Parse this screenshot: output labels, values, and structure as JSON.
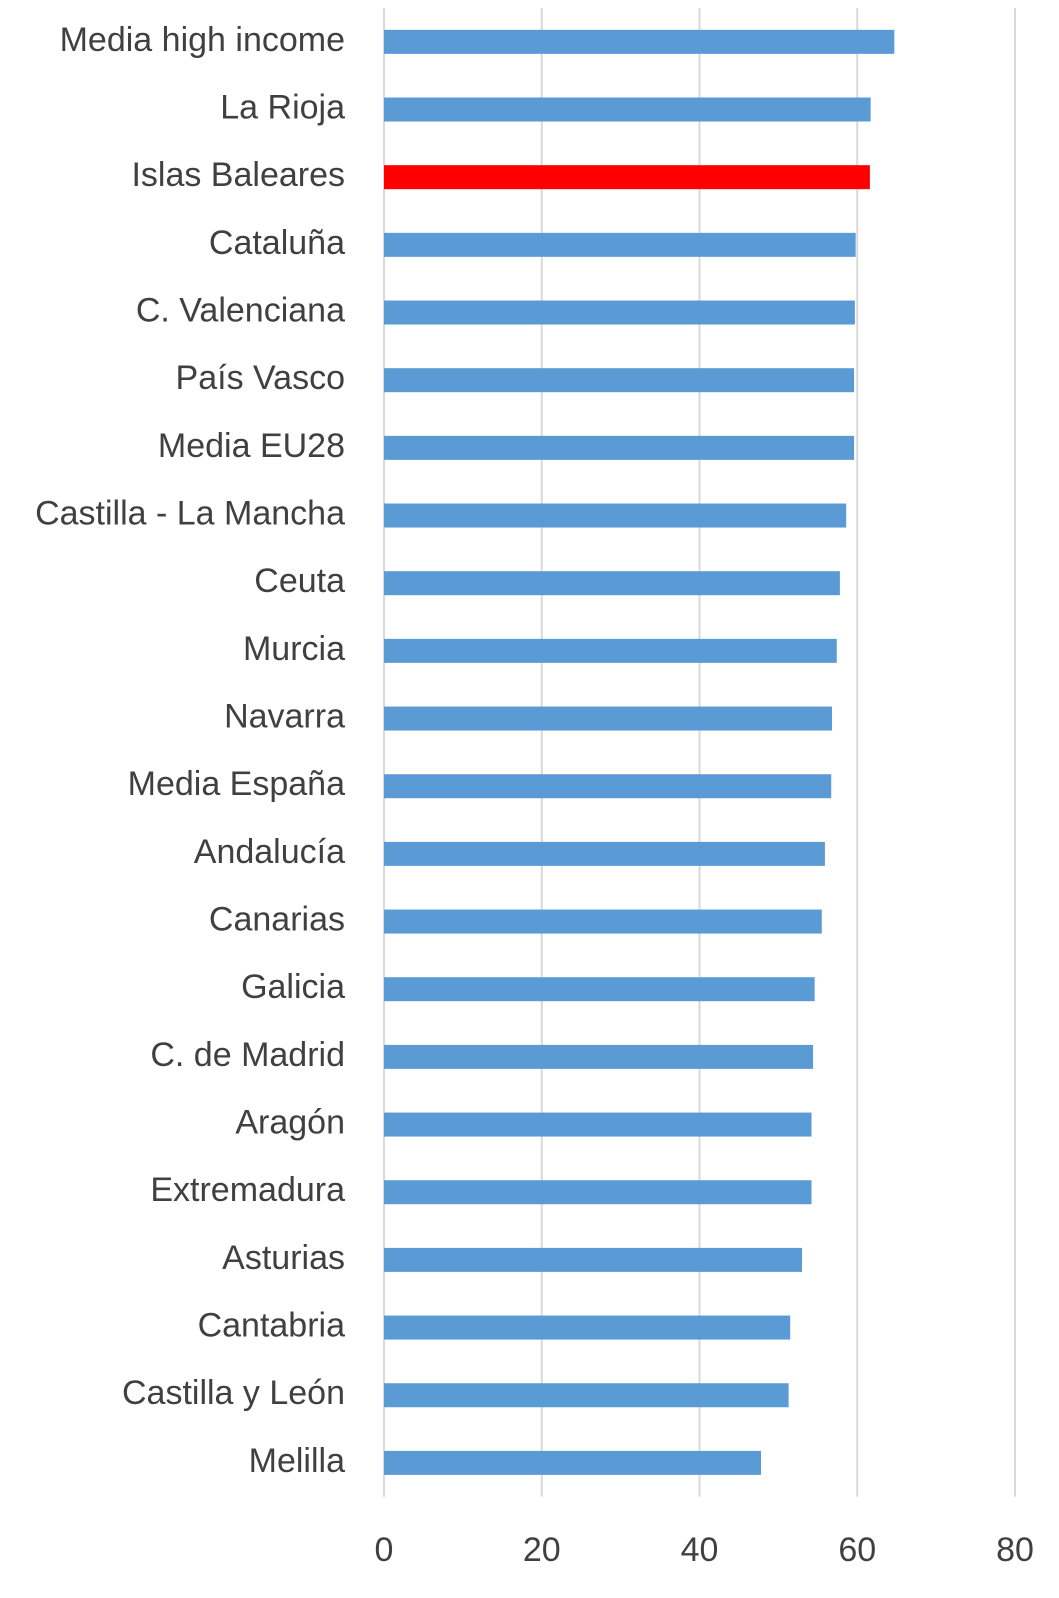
{
  "chart_data": {
    "type": "hbar",
    "categories": [
      "Media high income",
      "La Rioja",
      "Islas Baleares",
      "Cataluña",
      "C. Valenciana",
      "País Vasco",
      "Media EU28",
      "Castilla - La Mancha",
      "Ceuta",
      "Murcia",
      "Navarra",
      "Media España",
      "Andalucía",
      "Canarias",
      "Galicia",
      "C. de Madrid",
      "Aragón",
      "Extremadura",
      "Asturias",
      "Cantabria",
      "Castilla y León",
      "Melilla"
    ],
    "values": [
      64.7,
      61.7,
      61.6,
      59.8,
      59.7,
      59.6,
      59.6,
      58.6,
      57.8,
      57.4,
      56.8,
      56.7,
      55.9,
      55.5,
      54.6,
      54.4,
      54.2,
      54.2,
      53.0,
      51.5,
      51.3,
      47.8
    ],
    "colors": [
      "#5b9bd5",
      "#5b9bd5",
      "#ff0000",
      "#5b9bd5",
      "#5b9bd5",
      "#5b9bd5",
      "#5b9bd5",
      "#5b9bd5",
      "#5b9bd5",
      "#5b9bd5",
      "#5b9bd5",
      "#5b9bd5",
      "#5b9bd5",
      "#5b9bd5",
      "#5b9bd5",
      "#5b9bd5",
      "#5b9bd5",
      "#5b9bd5",
      "#5b9bd5",
      "#5b9bd5",
      "#5b9bd5",
      "#5b9bd5"
    ],
    "xlim": [
      0,
      80
    ],
    "xticks": [
      0,
      20,
      40,
      60,
      80
    ],
    "grid": true
  }
}
